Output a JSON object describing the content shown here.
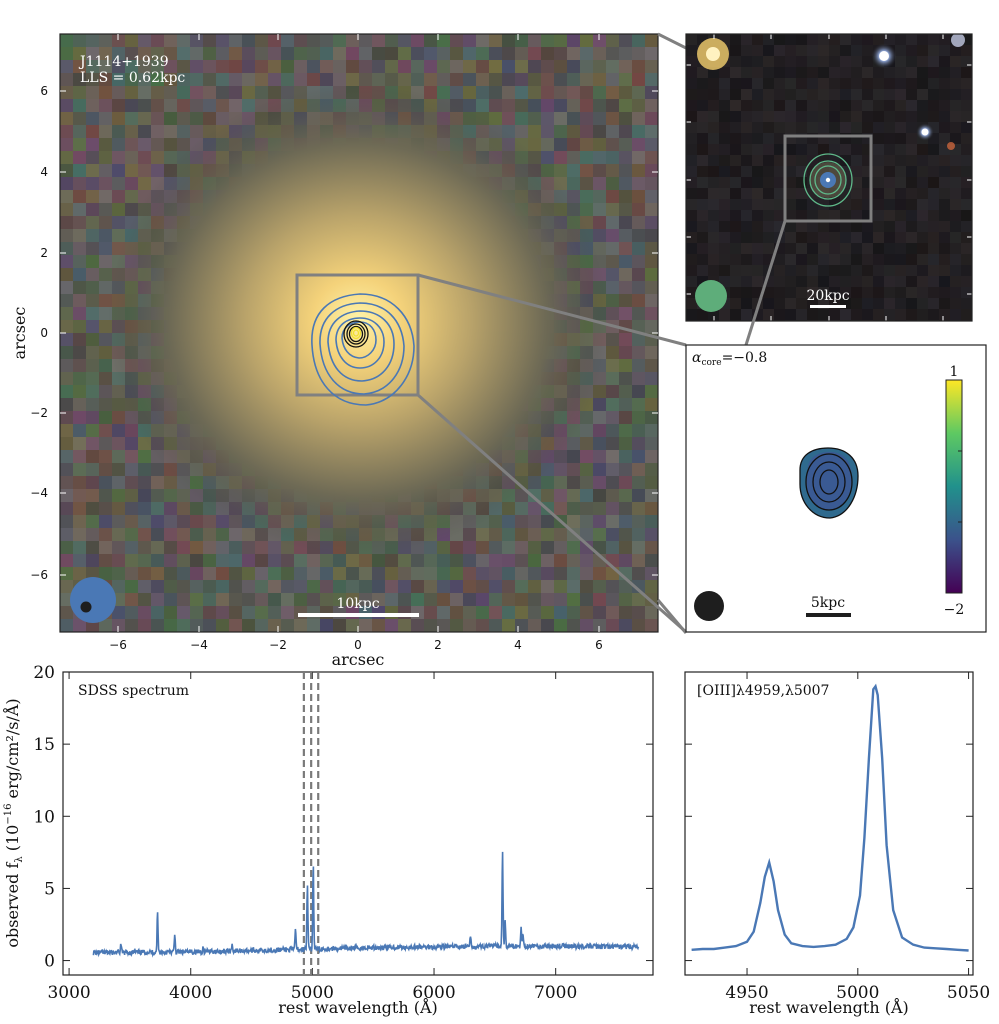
{
  "figure": {
    "main_image": {
      "target": "J1114+1939",
      "lls": "LLS = 0.62kpc",
      "scale_bar": "10kpc",
      "xlabel": "arcsec",
      "ylabel": "arcsec",
      "xticks": [
        "−6",
        "−4",
        "−2",
        "0",
        "2",
        "4",
        "6"
      ],
      "yticks": [
        "6",
        "4",
        "2",
        "0",
        "−2",
        "−4",
        "−6"
      ]
    },
    "wide_image": {
      "scale_bar": "20kpc"
    },
    "spectral_index": {
      "alpha_symbol": "α",
      "alpha_sub": "core",
      "alpha_value": "=−0.8",
      "scale_bar": "5kpc",
      "cbar_max": "1",
      "cbar_min": "−2"
    }
  },
  "chart_data": [
    {
      "type": "line",
      "title": "SDSS spectrum",
      "xlabel": "rest wavelength (Å)",
      "ylabel": "observed f",
      "ylabel_sub": "λ",
      "ylabel_rest": " (10",
      "ylabel_exp": "−16",
      "ylabel_units": " erg/cm²/s/Å)",
      "xlim": [
        2950,
        7800
      ],
      "ylim": [
        -1,
        20
      ],
      "xticks": [
        3000,
        4000,
        5000,
        6000,
        7000
      ],
      "yticks": [
        0,
        5,
        10,
        15,
        20
      ],
      "vlines": [
        4930,
        4990,
        5048
      ],
      "series": [
        {
          "name": "SDSS spectrum",
          "color": "#4a78b5",
          "continuum": [
            [
              3200,
              0.55
            ],
            [
              4000,
              0.6
            ],
            [
              4500,
              0.7
            ],
            [
              5000,
              0.8
            ],
            [
              5500,
              0.9
            ],
            [
              6000,
              0.95
            ],
            [
              6500,
              1.0
            ],
            [
              7000,
              1.0
            ],
            [
              7680,
              0.95
            ]
          ],
          "lines": [
            {
              "x": 3426,
              "y": 1.1
            },
            {
              "x": 3727,
              "y": 3.4
            },
            {
              "x": 3869,
              "y": 1.8
            },
            {
              "x": 4102,
              "y": 0.9
            },
            {
              "x": 4340,
              "y": 1.1
            },
            {
              "x": 4861,
              "y": 2.3
            },
            {
              "x": 4959,
              "y": 5.3
            },
            {
              "x": 5007,
              "y": 6.8
            },
            {
              "x": 6300,
              "y": 1.6
            },
            {
              "x": 6563,
              "y": 7.9
            },
            {
              "x": 6584,
              "y": 2.8
            },
            {
              "x": 6716,
              "y": 2.2
            },
            {
              "x": 6731,
              "y": 1.9
            }
          ]
        }
      ]
    },
    {
      "type": "line",
      "title": "[OIII]λ4959,λ5007",
      "xlabel": "rest wavelength (Å)",
      "xlim": [
        4922,
        5052
      ],
      "ylim": [
        -1,
        20
      ],
      "xticks": [
        4950,
        5000,
        5050
      ],
      "series": [
        {
          "name": "[OIII]",
          "color": "#4a78b5",
          "x": [
            4925,
            4930,
            4935,
            4940,
            4945,
            4950,
            4953,
            4956,
            4958,
            4960,
            4962,
            4964,
            4967,
            4970,
            4975,
            4980,
            4985,
            4990,
            4995,
            4998,
            5001,
            5003,
            5005,
            5007,
            5008,
            5009,
            5011,
            5013,
            5016,
            5020,
            5025,
            5030,
            5035,
            5040,
            5045,
            5050
          ],
          "y": [
            0.75,
            0.8,
            0.8,
            0.9,
            1.0,
            1.3,
            2.0,
            4.0,
            5.8,
            6.8,
            5.5,
            3.5,
            1.8,
            1.2,
            1.0,
            0.95,
            1.0,
            1.1,
            1.5,
            2.3,
            4.5,
            8.5,
            14.0,
            18.8,
            19.0,
            18.4,
            14.0,
            8.0,
            3.5,
            1.6,
            1.1,
            0.9,
            0.85,
            0.8,
            0.75,
            0.7
          ]
        }
      ]
    }
  ]
}
